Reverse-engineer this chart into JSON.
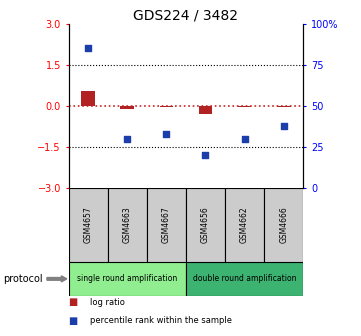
{
  "title": "GDS224 / 3482",
  "samples": [
    "GSM4657",
    "GSM4663",
    "GSM4667",
    "GSM4656",
    "GSM4662",
    "GSM4666"
  ],
  "log_ratio": [
    0.55,
    -0.1,
    -0.04,
    -0.28,
    -0.04,
    -0.06
  ],
  "percentile": [
    85,
    30,
    33,
    20,
    30,
    38
  ],
  "left_ylim": [
    -3,
    3
  ],
  "right_ylim": [
    0,
    100
  ],
  "left_yticks": [
    -3,
    -1.5,
    0,
    1.5,
    3
  ],
  "right_yticks": [
    0,
    25,
    50,
    75,
    100
  ],
  "bar_color": "#b22222",
  "scatter_color": "#1c3eaa",
  "dashed_line_color": "#cc2222",
  "groups": [
    {
      "label": "single round amplification",
      "indices": [
        0,
        1,
        2
      ],
      "color": "#90ee90"
    },
    {
      "label": "double round amplification",
      "indices": [
        3,
        4,
        5
      ],
      "color": "#3cb371"
    }
  ],
  "protocol_label": "protocol",
  "legend_bar_label": "log ratio",
  "legend_scatter_label": "percentile rank within the sample",
  "bg_color": "#ffffff",
  "sample_box_color": "#cccccc",
  "title_fontsize": 10,
  "tick_fontsize": 7
}
